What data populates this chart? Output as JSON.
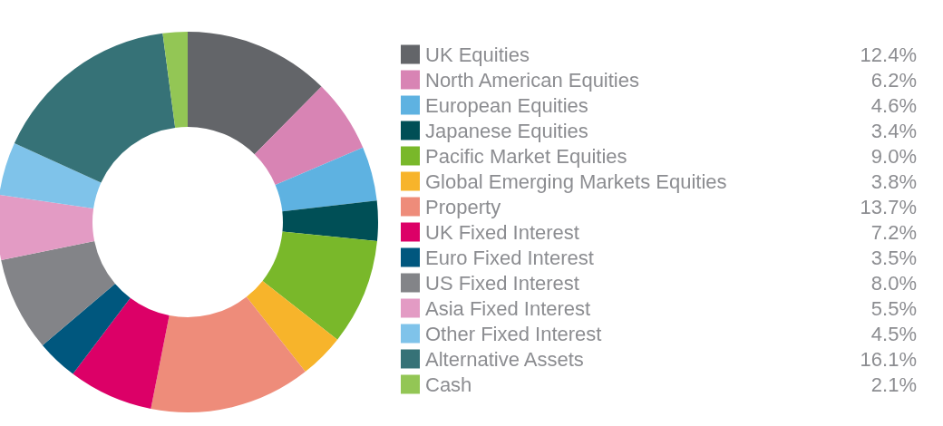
{
  "chart_data": {
    "type": "donut",
    "categories": [
      "UK Equities",
      "North American Equities",
      "European Equities",
      "Japanese Equities",
      "Pacific Market Equities",
      "Global Emerging Markets Equities",
      "Property",
      "UK Fixed Interest",
      "Euro Fixed Interest",
      "US Fixed Interest",
      "Asia Fixed Interest",
      "Other Fixed Interest",
      "Alternative Assets",
      "Cash"
    ],
    "values": [
      12.4,
      6.2,
      4.6,
      3.4,
      9.0,
      3.8,
      13.7,
      7.2,
      3.5,
      8.0,
      5.5,
      4.5,
      16.1,
      2.1
    ],
    "value_labels": [
      "12.4%",
      "6.2%",
      "4.6%",
      "3.4%",
      "9.0%",
      "3.8%",
      "13.7%",
      "7.2%",
      "3.5%",
      "8.0%",
      "5.5%",
      "4.5%",
      "16.1%",
      "2.1%"
    ],
    "colors": [
      "#636569",
      "#d884b4",
      "#5eb2e1",
      "#004f56",
      "#79b82a",
      "#f7b42b",
      "#ee8c7a",
      "#dc0067",
      "#00577e",
      "#838488",
      "#e39bc4",
      "#7fc3ea",
      "#367277",
      "#93c655"
    ],
    "legend": "right"
  }
}
